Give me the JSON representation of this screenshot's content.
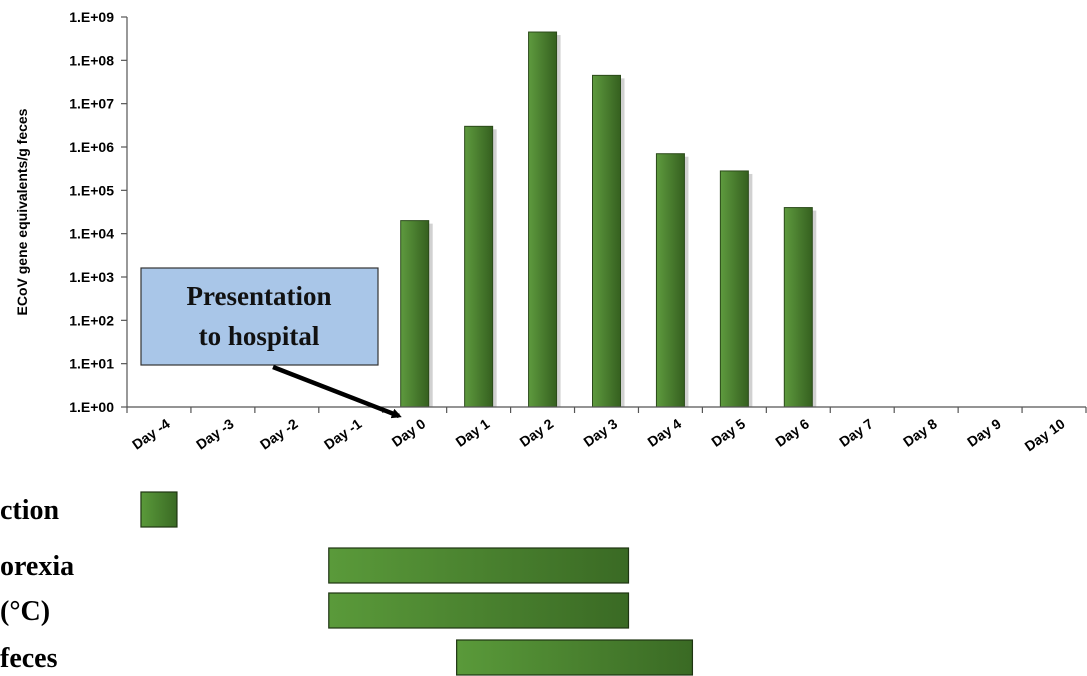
{
  "chart_data": {
    "type": "bar",
    "ylabel": "ECoV gene equivalents/g feces",
    "yscale": "log",
    "ylim": [
      1,
      1000000000
    ],
    "yticks": [
      "1.E+00",
      "1.E+01",
      "1.E+02",
      "1.E+03",
      "1.E+04",
      "1.E+05",
      "1.E+06",
      "1.E+07",
      "1.E+08",
      "1.E+09"
    ],
    "categories": [
      "Day -4",
      "Day -3",
      "Day -2",
      "Day -1",
      "Day 0",
      "Day 1",
      "Day 2",
      "Day 3",
      "Day 4",
      "Day 5",
      "Day 6",
      "Day 7",
      "Day 8",
      "Day 9",
      "Day 10"
    ],
    "values": [
      null,
      null,
      null,
      null,
      20000,
      3000000,
      450000000,
      45000000,
      700000,
      280000,
      40000,
      null,
      null,
      null,
      null
    ],
    "bar_color": "#4a7d2e",
    "annotation": {
      "lines": [
        "Presentation",
        "to hospital"
      ],
      "points_to": "Day 0",
      "box_color": "#a9c6e8"
    },
    "timeline": [
      {
        "label": "ction",
        "start": "Day -4",
        "end": "Day -4"
      },
      {
        "label": "orexia",
        "start": "Day -1",
        "end": "Day 3"
      },
      {
        "label": "(°C)",
        "start": "Day -1",
        "end": "Day 3"
      },
      {
        "label": "feces",
        "start": "Day 1",
        "end": "Day 4"
      }
    ]
  }
}
